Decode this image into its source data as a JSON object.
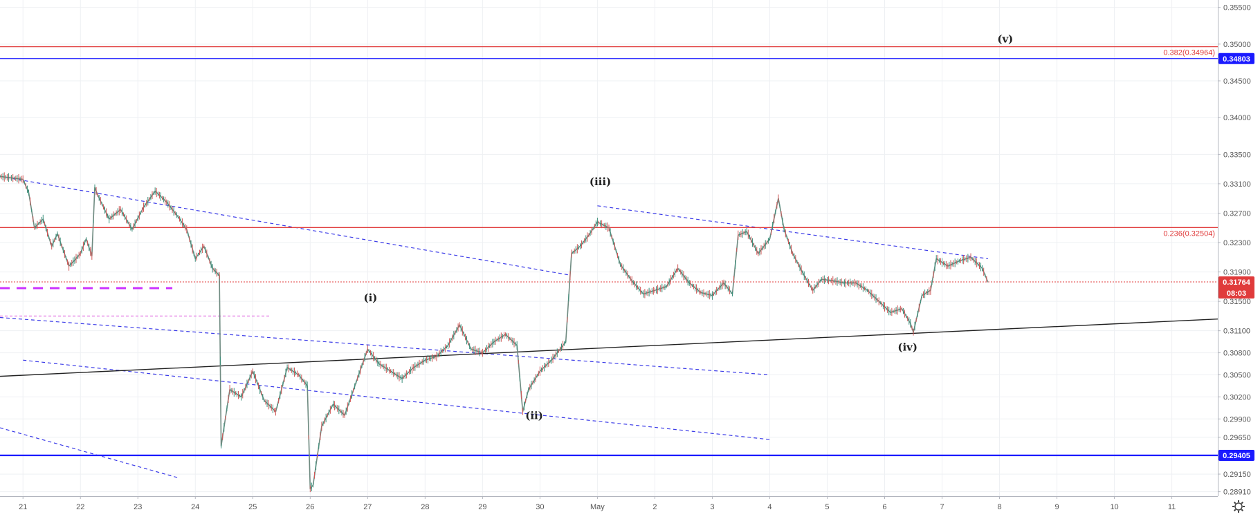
{
  "chart_data": {
    "type": "candlestick",
    "title": "",
    "xlabel": "",
    "ylabel": "",
    "ylim": [
      0.2885,
      0.356
    ],
    "y_ticks": [
      {
        "value": 0.355,
        "label": "0.35500"
      },
      {
        "value": 0.35,
        "label": "0.35000"
      },
      {
        "value": 0.345,
        "label": "0.34500"
      },
      {
        "value": 0.34,
        "label": "0.34000"
      },
      {
        "value": 0.335,
        "label": "0.33500"
      },
      {
        "value": 0.331,
        "label": "0.33100"
      },
      {
        "value": 0.327,
        "label": "0.32700"
      },
      {
        "value": 0.323,
        "label": "0.32300"
      },
      {
        "value": 0.319,
        "label": "0.31900"
      },
      {
        "value": 0.315,
        "label": "0.31500"
      },
      {
        "value": 0.311,
        "label": "0.31100"
      },
      {
        "value": 0.308,
        "label": "0.30800"
      },
      {
        "value": 0.305,
        "label": "0.30500"
      },
      {
        "value": 0.302,
        "label": "0.30200"
      },
      {
        "value": 0.299,
        "label": "0.29900"
      },
      {
        "value": 0.2965,
        "label": "0.29650"
      },
      {
        "value": 0.294,
        "label": "0.29400"
      },
      {
        "value": 0.2915,
        "label": "0.29150"
      },
      {
        "value": 0.2891,
        "label": "0.28910"
      }
    ],
    "x_domain": [
      -0.4,
      20.8
    ],
    "x_ticks": [
      {
        "value": 0,
        "label": "21"
      },
      {
        "value": 1,
        "label": "22"
      },
      {
        "value": 2,
        "label": "23"
      },
      {
        "value": 3,
        "label": "24"
      },
      {
        "value": 4,
        "label": "25"
      },
      {
        "value": 5,
        "label": "26"
      },
      {
        "value": 6,
        "label": "27"
      },
      {
        "value": 7,
        "label": "28"
      },
      {
        "value": 8,
        "label": "29"
      },
      {
        "value": 9,
        "label": "30"
      },
      {
        "value": 10,
        "label": "May"
      },
      {
        "value": 11,
        "label": "2"
      },
      {
        "value": 12,
        "label": "3"
      },
      {
        "value": 13,
        "label": "4"
      },
      {
        "value": 14,
        "label": "5"
      },
      {
        "value": 15,
        "label": "6"
      },
      {
        "value": 16,
        "label": "7"
      },
      {
        "value": 17,
        "label": "8"
      },
      {
        "value": 18,
        "label": "9"
      },
      {
        "value": 19,
        "label": "10"
      },
      {
        "value": 20,
        "label": "11"
      }
    ],
    "price_path": [
      [
        -0.4,
        0.332
      ],
      [
        0.0,
        0.3316
      ],
      [
        0.1,
        0.3298
      ],
      [
        0.2,
        0.325
      ],
      [
        0.35,
        0.3262
      ],
      [
        0.5,
        0.3225
      ],
      [
        0.6,
        0.3242
      ],
      [
        0.8,
        0.3198
      ],
      [
        0.9,
        0.3206
      ],
      [
        1.0,
        0.3215
      ],
      [
        1.1,
        0.3235
      ],
      [
        1.2,
        0.3212
      ],
      [
        1.25,
        0.3305
      ],
      [
        1.3,
        0.3295
      ],
      [
        1.5,
        0.3262
      ],
      [
        1.7,
        0.3275
      ],
      [
        1.9,
        0.3248
      ],
      [
        2.1,
        0.3278
      ],
      [
        2.3,
        0.33
      ],
      [
        2.5,
        0.3285
      ],
      [
        2.7,
        0.3265
      ],
      [
        2.85,
        0.3248
      ],
      [
        3.0,
        0.3208
      ],
      [
        3.15,
        0.3225
      ],
      [
        3.3,
        0.3195
      ],
      [
        3.42,
        0.3185
      ],
      [
        3.45,
        0.2953
      ],
      [
        3.6,
        0.303
      ],
      [
        3.8,
        0.302
      ],
      [
        4.0,
        0.3055
      ],
      [
        4.2,
        0.3015
      ],
      [
        4.4,
        0.3
      ],
      [
        4.6,
        0.306
      ],
      [
        4.8,
        0.305
      ],
      [
        4.95,
        0.3035
      ],
      [
        5.0,
        0.2895
      ],
      [
        5.05,
        0.29
      ],
      [
        5.2,
        0.298
      ],
      [
        5.4,
        0.301
      ],
      [
        5.6,
        0.2995
      ],
      [
        5.8,
        0.304
      ],
      [
        6.0,
        0.3085
      ],
      [
        6.2,
        0.3065
      ],
      [
        6.4,
        0.3055
      ],
      [
        6.6,
        0.3045
      ],
      [
        6.8,
        0.306
      ],
      [
        7.0,
        0.307
      ],
      [
        7.2,
        0.3075
      ],
      [
        7.4,
        0.309
      ],
      [
        7.6,
        0.3118
      ],
      [
        7.8,
        0.3085
      ],
      [
        8.0,
        0.308
      ],
      [
        8.2,
        0.3095
      ],
      [
        8.4,
        0.3105
      ],
      [
        8.6,
        0.309
      ],
      [
        8.7,
        0.3
      ],
      [
        8.8,
        0.303
      ],
      [
        9.0,
        0.3055
      ],
      [
        9.2,
        0.307
      ],
      [
        9.35,
        0.3085
      ],
      [
        9.45,
        0.3095
      ],
      [
        9.55,
        0.3215
      ],
      [
        9.7,
        0.3225
      ],
      [
        9.85,
        0.324
      ],
      [
        10.0,
        0.3258
      ],
      [
        10.2,
        0.325
      ],
      [
        10.4,
        0.32
      ],
      [
        10.6,
        0.3178
      ],
      [
        10.8,
        0.316
      ],
      [
        11.0,
        0.3165
      ],
      [
        11.2,
        0.317
      ],
      [
        11.4,
        0.3195
      ],
      [
        11.6,
        0.3175
      ],
      [
        11.8,
        0.3162
      ],
      [
        12.0,
        0.3158
      ],
      [
        12.2,
        0.3175
      ],
      [
        12.35,
        0.316
      ],
      [
        12.45,
        0.324
      ],
      [
        12.6,
        0.3245
      ],
      [
        12.8,
        0.3215
      ],
      [
        13.0,
        0.3235
      ],
      [
        13.15,
        0.329
      ],
      [
        13.25,
        0.3248
      ],
      [
        13.4,
        0.3215
      ],
      [
        13.6,
        0.3185
      ],
      [
        13.75,
        0.3165
      ],
      [
        13.9,
        0.318
      ],
      [
        14.1,
        0.3178
      ],
      [
        14.3,
        0.3175
      ],
      [
        14.5,
        0.3175
      ],
      [
        14.7,
        0.3165
      ],
      [
        14.9,
        0.315
      ],
      [
        15.1,
        0.3135
      ],
      [
        15.3,
        0.314
      ],
      [
        15.45,
        0.312
      ],
      [
        15.5,
        0.3108
      ],
      [
        15.65,
        0.3158
      ],
      [
        15.8,
        0.3165
      ],
      [
        15.9,
        0.3208
      ],
      [
        16.1,
        0.3198
      ],
      [
        16.3,
        0.3205
      ],
      [
        16.5,
        0.321
      ],
      [
        16.7,
        0.3195
      ],
      [
        16.8,
        0.3176
      ]
    ],
    "horizontal_lines": [
      {
        "name": "resistance-blue-upper",
        "value": 0.34803,
        "color": "#1a1aff",
        "label": "0.34803"
      },
      {
        "name": "fib-0382",
        "value": 0.34964,
        "color": "#e03b3b",
        "label": "0.382(0.34964)"
      },
      {
        "name": "fib-0236",
        "value": 0.32504,
        "color": "#e03b3b",
        "label": "0.236(0.32504)"
      },
      {
        "name": "support-blue-lower",
        "value": 0.29405,
        "color": "#1a1aff",
        "label": "0.29405"
      }
    ],
    "current_price": {
      "value": 0.31764,
      "label": "0.31764",
      "countdown": "08:03",
      "color": "#e03b3b"
    },
    "wave_labels": [
      {
        "text": "(i)",
        "x": 6.05,
        "y": 0.315
      },
      {
        "text": "(ii)",
        "x": 8.9,
        "y": 0.299
      },
      {
        "text": "(iii)",
        "x": 10.05,
        "y": 0.3308
      },
      {
        "text": "(iv)",
        "x": 15.4,
        "y": 0.3083
      },
      {
        "text": "(v)",
        "x": 17.1,
        "y": 0.3502
      }
    ],
    "trend_lines": [
      {
        "name": "upper-channel-long",
        "style": "dashed",
        "color": "#3b3be8",
        "points": [
          [
            -0.4,
            0.332
          ],
          [
            9.5,
            0.3186
          ]
        ]
      },
      {
        "name": "upper-channel-short",
        "style": "dashed",
        "color": "#3b3be8",
        "points": [
          [
            10.0,
            0.328
          ],
          [
            16.8,
            0.3208
          ]
        ]
      },
      {
        "name": "mid-channel",
        "style": "dashed",
        "color": "#3b3be8",
        "points": [
          [
            -0.4,
            0.3128
          ],
          [
            13.0,
            0.305
          ]
        ]
      },
      {
        "name": "lower-channel",
        "style": "dashed",
        "color": "#3b3be8",
        "points": [
          [
            0.0,
            0.307
          ],
          [
            13.0,
            0.2962
          ]
        ]
      },
      {
        "name": "bottom-channel",
        "style": "dashed",
        "color": "#3b3be8",
        "points": [
          [
            -0.4,
            0.2978
          ],
          [
            2.7,
            0.291
          ]
        ]
      },
      {
        "name": "support-black",
        "style": "solid",
        "color": "#222222",
        "points": [
          [
            -0.4,
            0.3048
          ],
          [
            20.8,
            0.3126
          ]
        ]
      },
      {
        "name": "purple-level-1",
        "style": "dashed-bold",
        "color": "#cc33ff",
        "points": [
          [
            -0.4,
            0.3168
          ],
          [
            2.6,
            0.3168
          ]
        ]
      },
      {
        "name": "purple-level-2",
        "style": "dashed-thin",
        "color": "#e57ae5",
        "points": [
          [
            -0.4,
            0.313
          ],
          [
            4.3,
            0.313
          ]
        ]
      }
    ],
    "grid": true,
    "legend": "none"
  },
  "ui": {
    "settings_icon": "gear-icon"
  }
}
